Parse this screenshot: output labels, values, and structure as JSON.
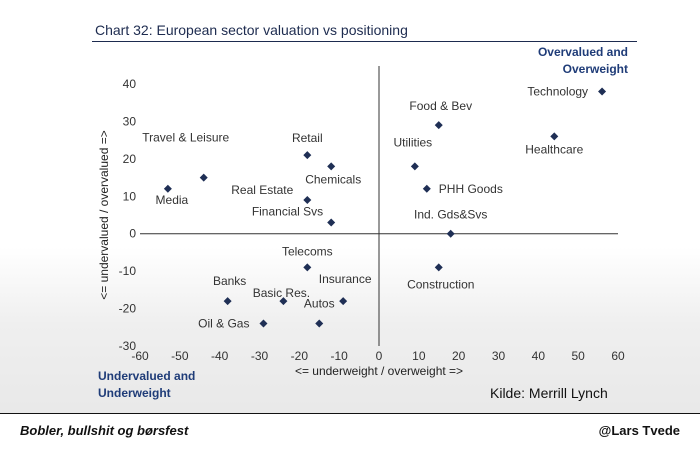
{
  "header": {
    "title": "Chart 32: European sector valuation vs positioning"
  },
  "quadrants": {
    "top_right": [
      "Overvalued and",
      "Overweight"
    ],
    "bottom_left": [
      "Undervalued and",
      "Underweight"
    ]
  },
  "source": "Kilde: Merrill Lynch",
  "footer": {
    "left": "Bobler, bullshit og børsfest",
    "right": "@Lars Tvede"
  },
  "colors": {
    "title": "#1d2b4f",
    "quadrant_text": "#1f3c78",
    "marker": "#1f2f55"
  },
  "chart_data": {
    "type": "scatter",
    "title": "Chart 32: European sector valuation vs positioning",
    "xlabel": "<= underweight / overweight =>",
    "ylabel": "<= undervalued / overvalued =>",
    "xlim": [
      -60,
      60
    ],
    "ylim": [
      -30,
      40
    ],
    "xticks": [
      -60,
      -50,
      -40,
      -30,
      -20,
      -10,
      0,
      10,
      20,
      30,
      40,
      50,
      60
    ],
    "yticks": [
      40,
      30,
      20,
      10,
      0,
      -10,
      -20,
      -30
    ],
    "grid": false,
    "points": [
      {
        "label": "Technology",
        "x": 56,
        "y": 38
      },
      {
        "label": "Healthcare",
        "x": 44,
        "y": 26
      },
      {
        "label": "Food & Bev",
        "x": 15,
        "y": 29
      },
      {
        "label": "Utilities",
        "x": 9,
        "y": 18
      },
      {
        "label": "PHH Goods",
        "x": 12,
        "y": 12
      },
      {
        "label": "Ind. Gds&Svs",
        "x": 18,
        "y": 0
      },
      {
        "label": "Construction",
        "x": 15,
        "y": -9
      },
      {
        "label": "Retail",
        "x": -18,
        "y": 21
      },
      {
        "label": "Chemicals",
        "x": -12,
        "y": 18
      },
      {
        "label": "Travel & Leisure",
        "x": -44,
        "y": 15
      },
      {
        "label": "Media",
        "x": -53,
        "y": 12
      },
      {
        "label": "Real Estate",
        "x": -18,
        "y": 9
      },
      {
        "label": "Financial Svs",
        "x": -12,
        "y": 3
      },
      {
        "label": "Telecoms",
        "x": -18,
        "y": -9
      },
      {
        "label": "Banks",
        "x": -38,
        "y": -18
      },
      {
        "label": "Basic Res.",
        "x": -24,
        "y": -18
      },
      {
        "label": "Insurance",
        "x": -9,
        "y": -18
      },
      {
        "label": "Oil & Gas",
        "x": -29,
        "y": -24
      },
      {
        "label": "Autos",
        "x": -15,
        "y": -24
      }
    ]
  }
}
